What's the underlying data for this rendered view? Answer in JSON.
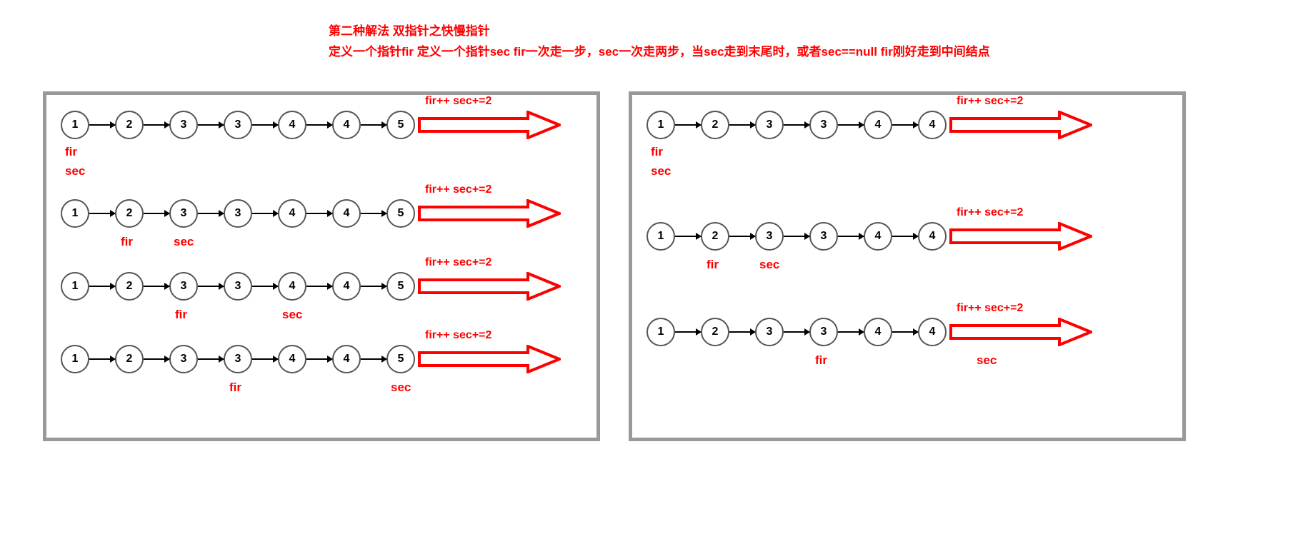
{
  "header": {
    "line1": "第二种解法 双指针之快慢指针",
    "line2": "定义一个指针fir 定义一个指针sec  fir一次走一步，sec一次走两步，当sec走到末尾时，或者sec==null    fir刚好走到中间结点"
  },
  "style": {
    "text_color": "#ff0000",
    "node_border": "#555555",
    "panel_border": "#999999",
    "arrow_stroke": "#ff0000",
    "node_diameter": 40,
    "node_gap": 36,
    "big_arrow_width": 200,
    "big_arrow_height": 40,
    "font_header": 17,
    "font_label": 17,
    "font_node": 16
  },
  "arrow_label": "fir++  sec+=2",
  "fir_label": "fir",
  "sec_label": "sec",
  "left_panel": {
    "nodes": [
      "1",
      "2",
      "3",
      "3",
      "4",
      "4",
      "5"
    ],
    "steps": [
      {
        "fir_idx": 0,
        "sec_idx": 0,
        "stacked": true
      },
      {
        "fir_idx": 1,
        "sec_idx": 2,
        "stacked": false
      },
      {
        "fir_idx": 2,
        "sec_idx": 4,
        "stacked": false
      },
      {
        "fir_idx": 3,
        "sec_idx": 6,
        "stacked": false
      }
    ]
  },
  "right_panel": {
    "nodes": [
      "1",
      "2",
      "3",
      "3",
      "4",
      "4"
    ],
    "steps": [
      {
        "fir_idx": 0,
        "sec_idx": 0,
        "stacked": true
      },
      {
        "fir_idx": 1,
        "sec_idx": 2,
        "stacked": false
      },
      {
        "fir_idx": 3,
        "sec_idx": 6,
        "stacked": false
      }
    ]
  }
}
